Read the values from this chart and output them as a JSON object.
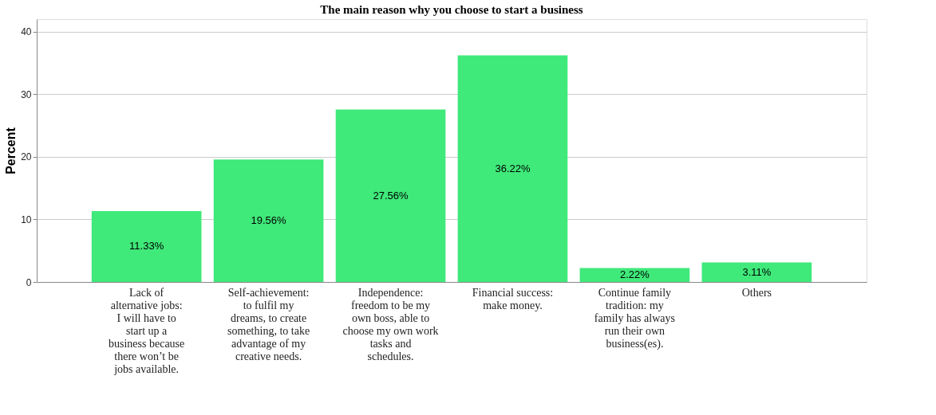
{
  "chart_data": {
    "type": "bar",
    "title": "The main reason why you choose to start a business",
    "ylabel": "Percent",
    "categories": [
      "Lack of alternative jobs: I will have to start up a business because there won’t be jobs available.",
      "Self-achievement: to fulfil my dreams, to create something, to take advantage of my creative needs.",
      "Independence: freedom to be my own boss, able to choose my own work tasks and schedules.",
      "Financial success: make money.",
      "Continue family tradition: my family has always run their own business(es).",
      "Others"
    ],
    "values": [
      11.33,
      19.56,
      27.56,
      36.22,
      2.22,
      3.11
    ],
    "value_labels": [
      "11.33%",
      "19.56%",
      "27.56%",
      "36.22%",
      "2.22%",
      "3.11%"
    ],
    "color": "#3fe97a",
    "ylim": [
      0,
      42
    ],
    "yticks": [
      0,
      10,
      20,
      30,
      40
    ],
    "grid": "y"
  }
}
